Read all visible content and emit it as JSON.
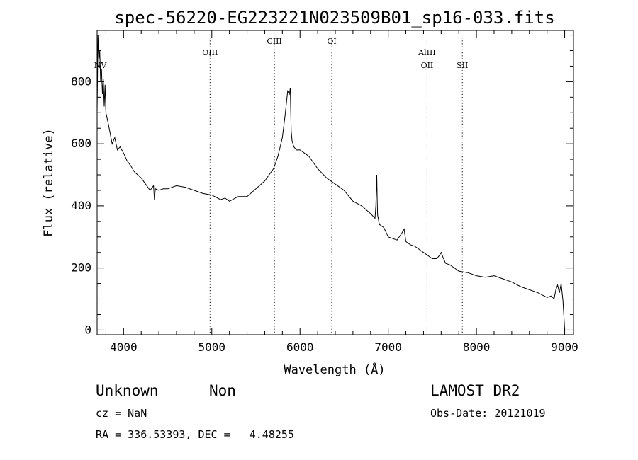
{
  "chart_data": {
    "type": "line",
    "title": "spec-56220-EG223221N023509B01_sp16-033.fits",
    "xlabel": "Wavelength (Å)",
    "ylabel": "Flux (relative)",
    "xlim": [
      3700,
      9100
    ],
    "ylim": [
      -15,
      965
    ],
    "xticks": [
      4000,
      5000,
      6000,
      7000,
      8000,
      9000
    ],
    "yticks": [
      0,
      200,
      400,
      600,
      800
    ],
    "grid": false,
    "series": [
      {
        "x": [
          3700,
          3710,
          3720,
          3730,
          3740,
          3750,
          3760,
          3770,
          3780,
          3790,
          3800,
          3815,
          3830,
          3850,
          3870,
          3900,
          3930,
          3960,
          4000,
          4040,
          4080,
          4120,
          4160,
          4200,
          4250,
          4300,
          4340,
          4350,
          4360,
          4400,
          4450,
          4500,
          4600,
          4700,
          4800,
          4900,
          5000,
          5100,
          5150,
          5200,
          5300,
          5400,
          5500,
          5600,
          5650,
          5700,
          5750,
          5800,
          5830,
          5860,
          5880,
          5890,
          5895,
          5900,
          5910,
          5930,
          5960,
          6000,
          6050,
          6100,
          6200,
          6300,
          6400,
          6500,
          6600,
          6700,
          6800,
          6850,
          6860,
          6870,
          6875,
          6880,
          6900,
          6950,
          7000,
          7100,
          7150,
          7180,
          7200,
          7250,
          7300,
          7400,
          7500,
          7550,
          7580,
          7600,
          7620,
          7650,
          7700,
          7800,
          7900,
          8000,
          8100,
          8200,
          8300,
          8400,
          8500,
          8600,
          8700,
          8800,
          8850,
          8880,
          8900,
          8920,
          8940,
          8960,
          8980,
          9000
        ],
        "y": [
          700,
          950,
          870,
          900,
          800,
          840,
          760,
          810,
          720,
          790,
          700,
          680,
          660,
          630,
          600,
          620,
          580,
          590,
          570,
          545,
          530,
          510,
          500,
          490,
          470,
          450,
          465,
          420,
          455,
          450,
          455,
          455,
          465,
          460,
          450,
          440,
          435,
          420,
          425,
          415,
          430,
          430,
          455,
          480,
          500,
          520,
          560,
          620,
          690,
          770,
          760,
          780,
          700,
          640,
          610,
          590,
          580,
          580,
          570,
          560,
          520,
          490,
          470,
          450,
          415,
          400,
          375,
          360,
          400,
          500,
          420,
          370,
          340,
          330,
          300,
          290,
          310,
          325,
          285,
          275,
          270,
          250,
          230,
          230,
          240,
          250,
          235,
          215,
          210,
          190,
          185,
          175,
          170,
          175,
          165,
          155,
          140,
          130,
          120,
          105,
          110,
          100,
          130,
          145,
          120,
          150,
          95,
          0
        ]
      }
    ],
    "annotations": [
      {
        "label": "NV",
        "x": 3720
      },
      {
        "label": "OIII",
        "x": 4980
      },
      {
        "label": "CIII",
        "x": 5710
      },
      {
        "label": "OI",
        "x": 6360
      },
      {
        "label": "AlIII",
        "x": 7440
      },
      {
        "label": "OII",
        "x": 7440
      },
      {
        "label": "SII",
        "x": 7840
      }
    ]
  },
  "footer": {
    "object_class": "Unknown",
    "object_subclass": "Non",
    "survey": "LAMOST DR2",
    "redshift": "cz = NaN",
    "obs_date": "Obs-Date: 20121019",
    "coords": "RA = 336.53393, DEC =   4.48255"
  }
}
